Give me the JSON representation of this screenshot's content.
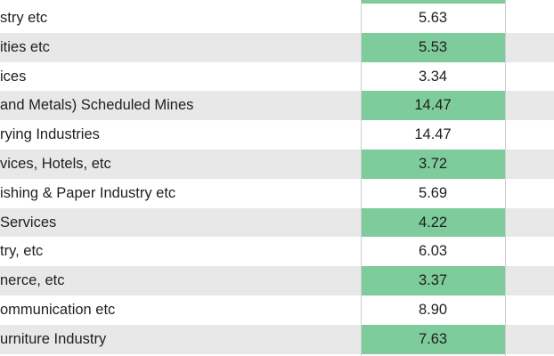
{
  "rows": [
    {
      "name": "stry etc",
      "value": "5.63",
      "shaded": false
    },
    {
      "name": "ities etc",
      "value": "5.53",
      "shaded": true
    },
    {
      "name": "ices",
      "value": "3.34",
      "shaded": false
    },
    {
      "name": " and Metals) Scheduled Mines",
      "value": "14.47",
      "shaded": true
    },
    {
      "name": "rying Industries",
      "value": "14.47",
      "shaded": false
    },
    {
      "name": "vices, Hotels, etc",
      "value": "3.72",
      "shaded": true
    },
    {
      "name": "ishing & Paper Industry etc",
      "value": "5.69",
      "shaded": false
    },
    {
      "name": "Services",
      "value": "4.22",
      "shaded": true
    },
    {
      "name": "try, etc",
      "value": "6.03",
      "shaded": false
    },
    {
      "name": "nerce, etc",
      "value": "3.37",
      "shaded": true
    },
    {
      "name": "ommunication etc",
      "value": "8.90",
      "shaded": false
    },
    {
      "name": "urniture Industry",
      "value": "7.63",
      "shaded": true
    }
  ],
  "colors": {
    "highlight": "#7ecb9b",
    "row_shade": "#e8e8e8"
  }
}
